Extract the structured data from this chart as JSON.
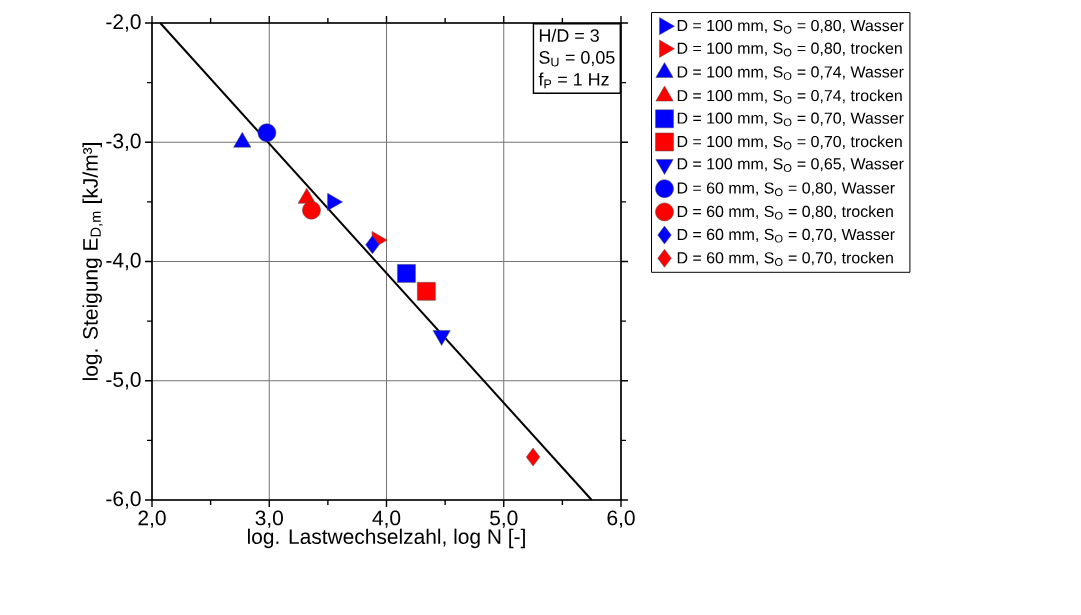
{
  "chart_data": {
    "type": "scatter",
    "xlabel": "log. Lastwechselzahl, log N [-]",
    "ylabel": "log. Steigung E$_{D,m}$ [kJ/m³]",
    "xlim": [
      2.0,
      6.0
    ],
    "ylim": [
      -6.0,
      -2.0
    ],
    "xticks": [
      {
        "value": 2,
        "label": "2,0"
      },
      {
        "value": 3,
        "label": "3,0"
      },
      {
        "value": 4,
        "label": "4,0"
      },
      {
        "value": 5,
        "label": "5,0"
      },
      {
        "value": 6,
        "label": "6,0"
      }
    ],
    "yticks": [
      {
        "value": -6,
        "label": "-6,0"
      },
      {
        "value": -5,
        "label": "-5,0"
      },
      {
        "value": -4,
        "label": "-4,0"
      },
      {
        "value": -3,
        "label": "-3,0"
      },
      {
        "value": -2,
        "label": "-2,0"
      }
    ],
    "grid": true,
    "legend": "right",
    "annotations": [
      "H/D = 3",
      "S$_{U}$ = 0,05",
      "f$_{P}$ = 1 Hz"
    ],
    "series": [
      {
        "name": "D = 100 mm, S$_{O}$ = 0,80, Wasser",
        "color": "#0000ff",
        "marker": "triangle-right",
        "x": [
          3.54
        ],
        "values": [
          -3.5
        ]
      },
      {
        "name": "D = 100 mm, S$_{O}$ = 0,80, trocken",
        "color": "#ff0000",
        "marker": "triangle-right",
        "x": [
          3.92
        ],
        "values": [
          -3.82
        ]
      },
      {
        "name": "D = 100 mm, S$_{O}$ = 0,74, Wasser",
        "color": "#0000ff",
        "marker": "triangle",
        "x": [
          2.77
        ],
        "values": [
          -3.0
        ]
      },
      {
        "name": "D = 100 mm, S$_{O}$ = 0,74, trocken",
        "color": "#ff0000",
        "marker": "triangle",
        "x": [
          3.32
        ],
        "values": [
          -3.47
        ]
      },
      {
        "name": "D = 100 mm, S$_{O}$ = 0,70, Wasser",
        "color": "#0000ff",
        "marker": "square",
        "x": [
          4.17
        ],
        "values": [
          -4.1
        ]
      },
      {
        "name": "D = 100 mm, S$_{O}$ = 0,70, trocken",
        "color": "#ff0000",
        "marker": "square",
        "x": [
          4.34
        ],
        "values": [
          -4.25
        ]
      },
      {
        "name": "D = 100 mm, S$_{O}$ = 0,65, Wasser",
        "color": "#0000ff",
        "marker": "triangle-down",
        "x": [
          4.47
        ],
        "values": [
          -4.62
        ]
      },
      {
        "name": "D = 60 mm, S$_{O}$ = 0,80, Wasser",
        "color": "#0000ff",
        "marker": "circle",
        "x": [
          2.98
        ],
        "values": [
          -2.92
        ]
      },
      {
        "name": "D = 60 mm, S$_{O}$ = 0,80, trocken",
        "color": "#ff0000",
        "marker": "circle",
        "x": [
          3.36
        ],
        "values": [
          -3.57
        ]
      },
      {
        "name": "D = 60 mm, S$_{O}$ = 0,70, Wasser",
        "color": "#0000ff",
        "marker": "diamond",
        "x": [
          3.88
        ],
        "values": [
          -3.86
        ]
      },
      {
        "name": "D = 60 mm, S$_{O}$ = 0,70, trocken",
        "color": "#ff0000",
        "marker": "diamond",
        "x": [
          5.25
        ],
        "values": [
          -5.64
        ]
      },
      {
        "type": "line",
        "color": "#000000",
        "marker": "none",
        "x": [
          2.07,
          5.75
        ],
        "values": [
          -2.0,
          -6.0
        ]
      }
    ]
  }
}
